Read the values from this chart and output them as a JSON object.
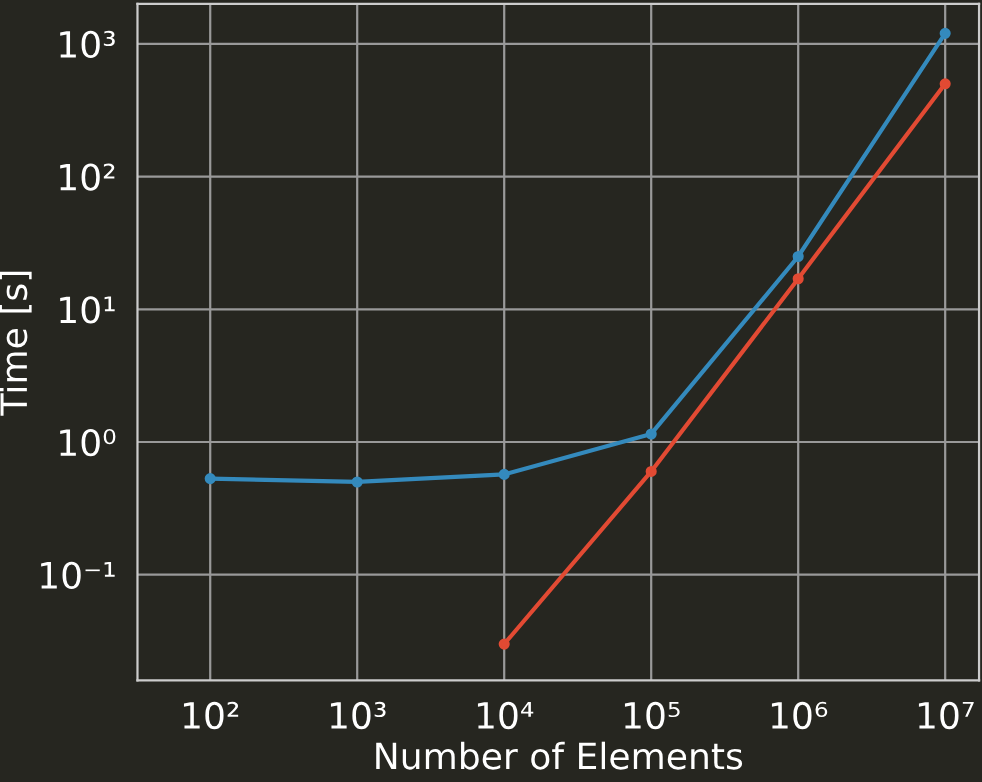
{
  "chart_data": {
    "type": "line",
    "xlabel": "Number of Elements",
    "ylabel": "Time [s]",
    "log": "xy",
    "grid": true,
    "marker": "circle",
    "line_style": "solid",
    "xlim": [
      32,
      17000000
    ],
    "ylim": [
      0.016,
      2000
    ],
    "xticks": [
      {
        "value": 100,
        "label": "10²"
      },
      {
        "value": 1000,
        "label": "10³"
      },
      {
        "value": 10000,
        "label": "10⁴"
      },
      {
        "value": 100000,
        "label": "10⁵"
      },
      {
        "value": 1000000,
        "label": "10⁶"
      },
      {
        "value": 10000000,
        "label": "10⁷"
      }
    ],
    "yticks": [
      {
        "value": 0.1,
        "label": "10⁻¹"
      },
      {
        "value": 1,
        "label": "10⁰"
      },
      {
        "value": 10,
        "label": "10¹"
      },
      {
        "value": 100,
        "label": "10²"
      },
      {
        "value": 1000,
        "label": "10³"
      }
    ],
    "series": [
      {
        "color": "#e24a33",
        "x": [
          10000,
          100000,
          1000000,
          10000000
        ],
        "values": [
          0.03,
          0.6,
          17,
          500
        ]
      },
      {
        "color": "#348abd",
        "x": [
          100,
          1000,
          10000,
          100000,
          1000000,
          10000000
        ],
        "values": [
          0.53,
          0.5,
          0.57,
          1.15,
          25,
          1200
        ]
      }
    ]
  }
}
